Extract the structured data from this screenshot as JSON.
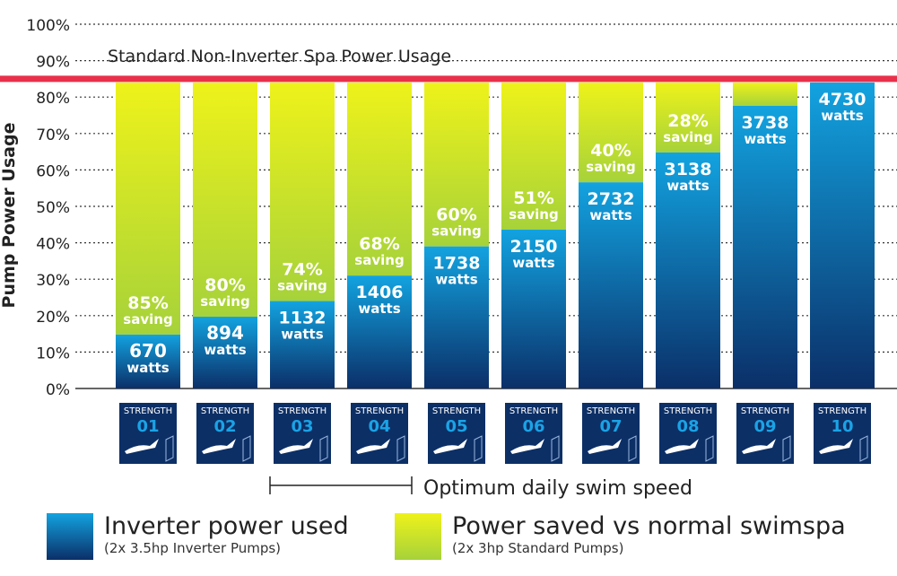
{
  "chart_data": {
    "type": "bar",
    "stacked": true,
    "ylabel": "Pump Power Usage",
    "ylim": [
      0,
      100
    ],
    "yticks": [
      "0%",
      "10%",
      "20%",
      "30%",
      "40%",
      "50%",
      "60%",
      "70%",
      "80%",
      "90%",
      "100%"
    ],
    "grid": "dotted horizontal",
    "categories": [
      "01",
      "02",
      "03",
      "04",
      "05",
      "06",
      "07",
      "08",
      "09",
      "10"
    ],
    "category_prefix": "STRENGTH",
    "reference_line": {
      "label": "Standard Non-Inverter Spa Power Usage",
      "value": 85,
      "color": "#e8304a"
    },
    "total_percent": 84,
    "inverter_percent": [
      14.8,
      19.7,
      24,
      31,
      39,
      43.6,
      56.6,
      64.8,
      77.6,
      84
    ],
    "watts": [
      "670",
      "894",
      "1132",
      "1406",
      "1738",
      "2150",
      "2732",
      "3138",
      "3738",
      "4730"
    ],
    "watts_unit": "watts",
    "saving": [
      "85%",
      "80%",
      "74%",
      "68%",
      "60%",
      "51%",
      "40%",
      "28%",
      "",
      ""
    ],
    "saving_word": "saving",
    "optimum_range": [
      "03",
      "05"
    ],
    "optimum_label": "Optimum daily swim speed",
    "series": [
      {
        "name": "Inverter power used",
        "note": "(2x 3.5hp Inverter Pumps)",
        "color": "#1a9ad6"
      },
      {
        "name": "Power saved vs normal swimspa",
        "note": "(2x 3hp Standard Pumps)",
        "color": "#e8f01a"
      }
    ],
    "legend": "bottom"
  }
}
